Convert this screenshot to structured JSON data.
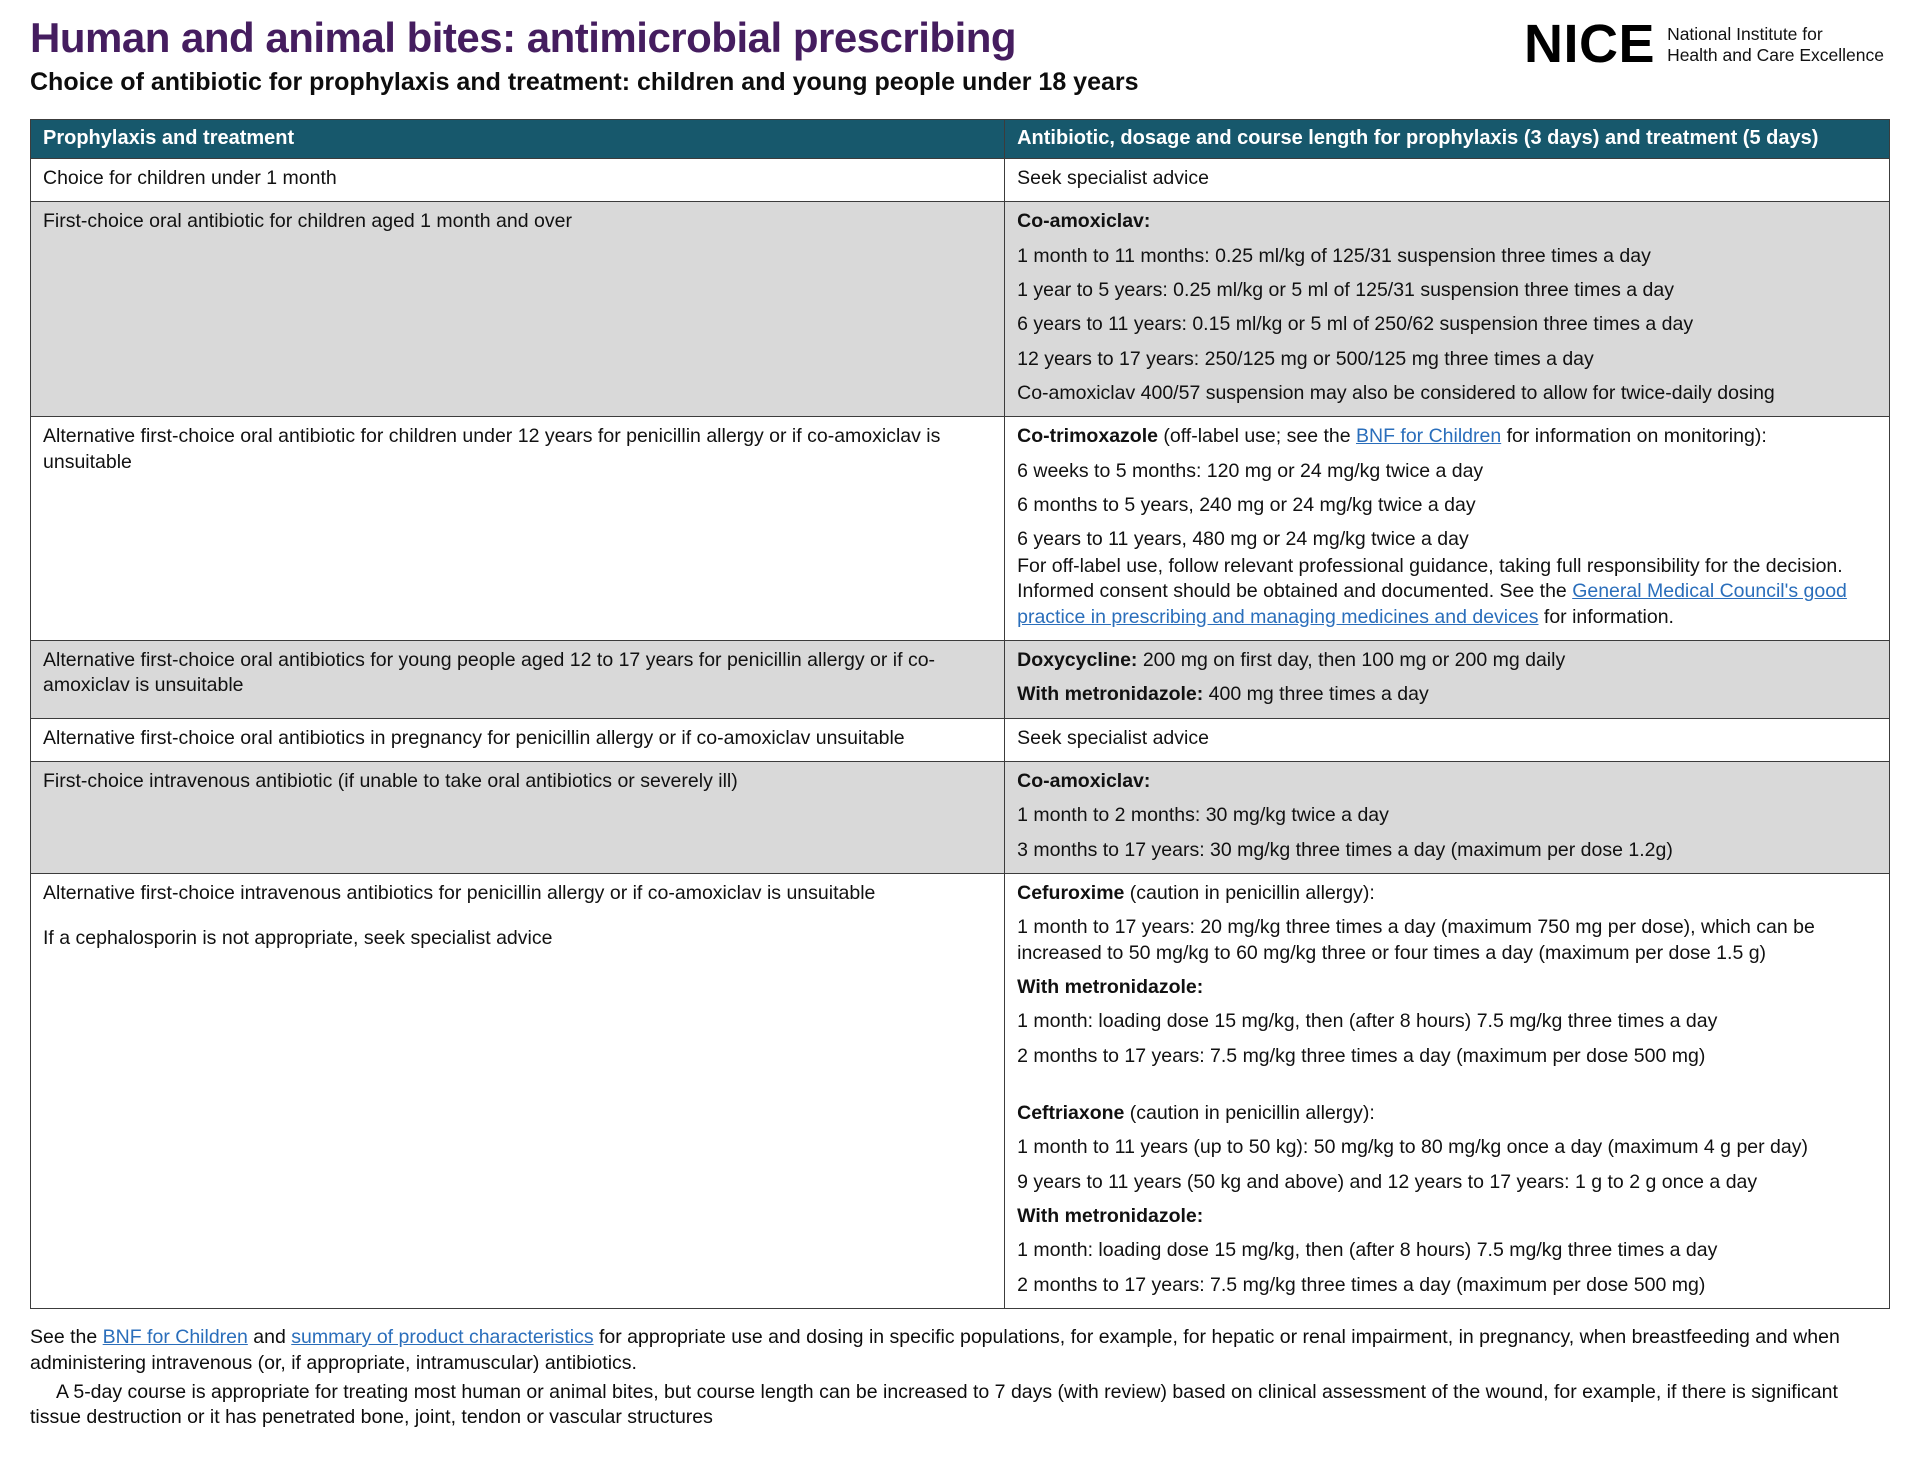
{
  "header": {
    "title": "Human and animal bites: antimicrobial prescribing",
    "subtitle": "Choice of antibiotic for prophylaxis and treatment: children and young people under 18 years",
    "logo": {
      "wordmark": "NICE",
      "tagline_line1": "National Institute for",
      "tagline_line2": "Health and Care Excellence"
    }
  },
  "colors": {
    "title_purple": "#451d5f",
    "header_teal": "#17586c",
    "row_shade": "#d9d9d9",
    "link_blue": "#2a6ebb",
    "border": "#3c3c3c"
  },
  "table": {
    "columns": [
      "Prophylaxis and treatment",
      "Antibiotic, dosage and course length for prophylaxis (3 days) and treatment (5 days)"
    ],
    "rows": [
      {
        "shaded": false,
        "left": [
          "Choice for children under 1 month"
        ],
        "right": [
          {
            "runs": [
              {
                "text": "Seek specialist advice"
              }
            ]
          }
        ]
      },
      {
        "shaded": true,
        "left": [
          "First-choice oral antibiotic for children aged 1 month and over"
        ],
        "right": [
          {
            "runs": [
              {
                "text": "Co-amoxiclav:",
                "bold": true
              }
            ]
          },
          {
            "runs": [
              {
                "text": "1 month to 11 months: 0.25 ml/kg of 125/31 suspension three times a day"
              }
            ]
          },
          {
            "runs": [
              {
                "text": "1 year to 5 years: 0.25 ml/kg or 5 ml of 125/31 suspension three times a day"
              }
            ]
          },
          {
            "runs": [
              {
                "text": "6 years to 11 years: 0.15 ml/kg or 5 ml of 250/62 suspension three times a day"
              }
            ]
          },
          {
            "runs": [
              {
                "text": "12 years to 17 years: 250/125 mg or 500/125 mg three times a day"
              }
            ]
          },
          {
            "runs": [
              {
                "text": "Co-amoxiclav 400/57 suspension may also be considered to allow for twice-daily dosing"
              }
            ]
          }
        ]
      },
      {
        "shaded": false,
        "left": [
          "Alternative first-choice oral antibiotic for children under 12 years for penicillin allergy or if co-amoxiclav is unsuitable"
        ],
        "right": [
          {
            "runs": [
              {
                "text": "Co-trimoxazole",
                "bold": true
              },
              {
                "text": " (off-label use; see the "
              },
              {
                "text": "BNF for Children",
                "link": true,
                "name": "bnf-for-children-link"
              },
              {
                "text": " for information on monitoring):"
              }
            ]
          },
          {
            "runs": [
              {
                "text": "6 weeks to 5 months: 120 mg or 24 mg/kg twice a day"
              }
            ]
          },
          {
            "runs": [
              {
                "text": "6 months to 5 years, 240 mg or 24 mg/kg twice a day"
              }
            ]
          },
          {
            "tight": true,
            "runs": [
              {
                "text": "6 years to 11 years, 480 mg or 24 mg/kg twice a day"
              }
            ]
          },
          {
            "runs": [
              {
                "text": "For off-label use, follow relevant professional guidance, taking full responsibility for the decision. Informed consent should be obtained and documented. See the "
              },
              {
                "text": "General Medical Council's good practice in prescribing and managing medicines and devices",
                "link": true,
                "name": "gmc-good-practice-link"
              },
              {
                "text": " for information."
              }
            ]
          }
        ]
      },
      {
        "shaded": true,
        "left": [
          "Alternative first-choice oral antibiotics for young people aged 12 to 17 years for penicillin allergy or if co-amoxiclav is unsuitable"
        ],
        "right": [
          {
            "runs": [
              {
                "text": "Doxycycline:",
                "bold": true
              },
              {
                "text": " 200 mg on first day, then 100 mg or 200 mg daily"
              }
            ]
          },
          {
            "runs": [
              {
                "text": "With metronidazole:",
                "bold": true
              },
              {
                "text": " 400 mg three times a day"
              }
            ]
          }
        ]
      },
      {
        "shaded": false,
        "left": [
          "Alternative first-choice oral antibiotics in pregnancy for penicillin allergy or if co-amoxiclav unsuitable"
        ],
        "right": [
          {
            "runs": [
              {
                "text": "Seek specialist advice"
              }
            ]
          }
        ]
      },
      {
        "shaded": true,
        "left": [
          "First-choice intravenous antibiotic (if unable to take oral antibiotics or severely ill)"
        ],
        "right": [
          {
            "runs": [
              {
                "text": "Co-amoxiclav:",
                "bold": true
              }
            ]
          },
          {
            "runs": [
              {
                "text": "1 month to 2 months: 30 mg/kg twice a day"
              }
            ]
          },
          {
            "runs": [
              {
                "text": "3 months to 17 years: 30 mg/kg three times a day (maximum per dose 1.2g)"
              }
            ]
          }
        ]
      },
      {
        "shaded": false,
        "left": [
          "Alternative first-choice intravenous antibiotics for penicillin allergy or if co-amoxiclav is unsuitable",
          "If a cephalosporin is not appropriate, seek specialist advice"
        ],
        "right": [
          {
            "runs": [
              {
                "text": "Cefuroxime",
                "bold": true
              },
              {
                "text": " (caution in penicillin allergy):"
              }
            ]
          },
          {
            "runs": [
              {
                "text": "1 month to 17 years: 20 mg/kg three times a day (maximum 750 mg per dose), which can be increased to 50 mg/kg to 60 mg/kg three or four times a day (maximum per dose 1.5 g)"
              }
            ]
          },
          {
            "runs": [
              {
                "text": "With metronidazole:",
                "bold": true
              }
            ]
          },
          {
            "runs": [
              {
                "text": "1 month: loading dose 15 mg/kg, then (after 8 hours) 7.5 mg/kg three times a day"
              }
            ]
          },
          {
            "runs": [
              {
                "text": "2 months to 17 years: 7.5 mg/kg three times a day (maximum per dose 500 mg)"
              }
            ]
          },
          {
            "blank": true,
            "runs": []
          },
          {
            "runs": [
              {
                "text": "Ceftriaxone",
                "bold": true
              },
              {
                "text": " (caution in penicillin allergy):"
              }
            ]
          },
          {
            "runs": [
              {
                "text": "1 month to 11 years (up to 50 kg): 50 mg/kg to 80 mg/kg once a day (maximum 4 g per day)"
              }
            ]
          },
          {
            "runs": [
              {
                "text": "9 years to 11 years (50 kg and above) and 12 years to 17 years: 1 g to 2 g once a day"
              }
            ]
          },
          {
            "runs": [
              {
                "text": "With metronidazole:",
                "bold": true
              }
            ]
          },
          {
            "runs": [
              {
                "text": "1 month: loading dose 15 mg/kg, then (after 8 hours) 7.5 mg/kg three times a day"
              }
            ]
          },
          {
            "runs": [
              {
                "text": "2 months to 17 years: 7.5 mg/kg three times a day (maximum per dose 500 mg)"
              }
            ]
          }
        ]
      }
    ]
  },
  "footer": {
    "paragraphs": [
      {
        "runs": [
          {
            "text": "See the "
          },
          {
            "text": "BNF for Children",
            "link": true,
            "name": "footer-bnf-for-children-link"
          },
          {
            "text": " and "
          },
          {
            "text": "summary of product characteristics",
            "link": true,
            "name": "footer-spc-link"
          },
          {
            "text": " for appropriate use and dosing in specific populations, for example, for hepatic or renal impairment, in pregnancy, when breastfeeding and when administering intravenous (or, if appropriate, intramuscular) antibiotics."
          }
        ]
      },
      {
        "indent": true,
        "runs": [
          {
            "text": "A 5-day course is appropriate for treating most human or animal bites, but course length can be increased to 7 days (with review) based on clinical assessment of the wound, for example, if there is significant tissue destruction or it has penetrated bone, joint, tendon or vascular structures"
          }
        ]
      }
    ]
  }
}
